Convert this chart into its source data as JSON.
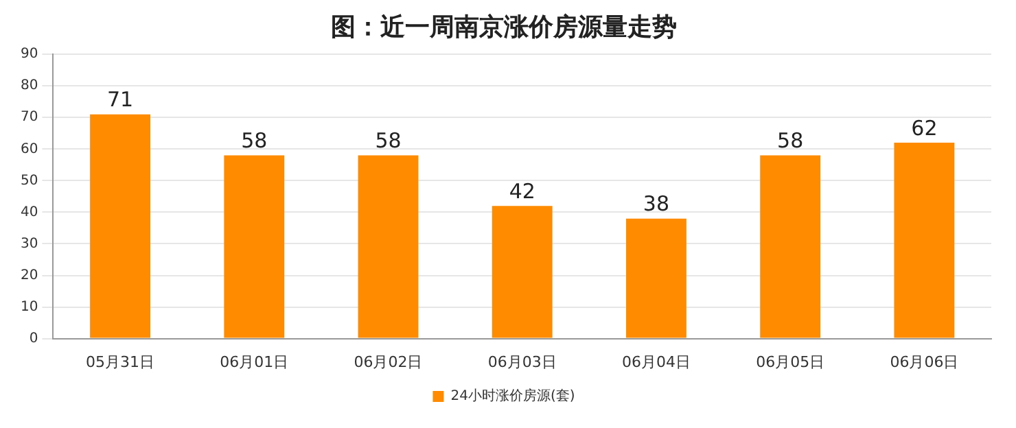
{
  "chart_data": {
    "type": "bar",
    "title": "图：近一周南京涨价房源量走势",
    "categories": [
      "05月31日",
      "06月01日",
      "06月02日",
      "06月03日",
      "06月04日",
      "06月05日",
      "06月06日"
    ],
    "series": [
      {
        "name": "24小时涨价房源(套)",
        "color": "#ff8c00",
        "values": [
          71,
          58,
          58,
          42,
          38,
          58,
          62
        ]
      }
    ],
    "ylim": [
      0,
      90
    ],
    "yticks": [
      0,
      10,
      20,
      30,
      40,
      50,
      60,
      70,
      80,
      90
    ],
    "grid": "y",
    "legend": "bottom",
    "data_labels": true
  }
}
